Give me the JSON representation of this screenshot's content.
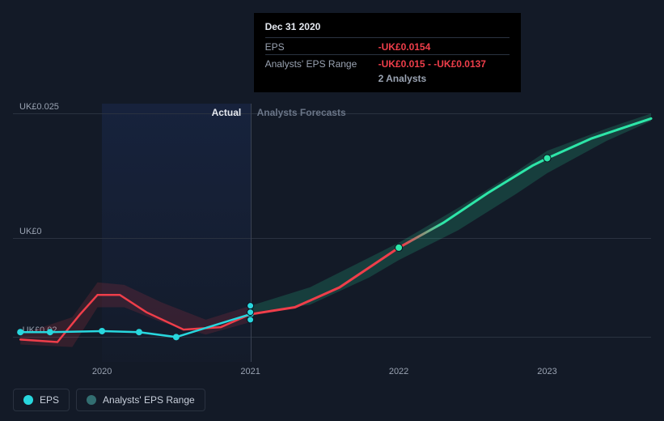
{
  "chart": {
    "type": "line",
    "background_color": "#131a27",
    "grid_color": "#2a3240",
    "text_color": "#9aa3b2",
    "region_actual_label": "Actual",
    "region_forecast_label": "Analysts Forecasts",
    "x": {
      "min": 2019.4,
      "max": 2023.7,
      "ticks": [
        2020,
        2021,
        2022,
        2023
      ],
      "labels": [
        "2020",
        "2021",
        "2022",
        "2023"
      ],
      "forecast_start": 2020.0,
      "actual_end": 2021.0
    },
    "y": {
      "min": -0.025,
      "max": 0.027,
      "ticks": [
        -0.02,
        0,
        0.025
      ],
      "labels": [
        "-UK£0.02",
        "UK£0",
        "UK£0.025"
      ]
    },
    "series": {
      "eps_actual": {
        "color": "#28d7de",
        "line_width": 2.5,
        "marker_radius": 4,
        "points": [
          [
            2019.45,
            -0.019
          ],
          [
            2019.65,
            -0.019
          ],
          [
            2020.0,
            -0.0188
          ],
          [
            2020.25,
            -0.019
          ],
          [
            2020.5,
            -0.02
          ],
          [
            2021.0,
            -0.0154
          ]
        ]
      },
      "eps_actual_smooth": {
        "color": "#ef3e4a",
        "line_width": 2.5,
        "points": [
          [
            2019.45,
            -0.0205
          ],
          [
            2019.7,
            -0.021
          ],
          [
            2019.85,
            -0.0155
          ],
          [
            2019.97,
            -0.0115
          ],
          [
            2020.12,
            -0.0115
          ],
          [
            2020.3,
            -0.015
          ],
          [
            2020.55,
            -0.0185
          ],
          [
            2020.8,
            -0.018
          ],
          [
            2021.0,
            -0.0154
          ]
        ]
      },
      "forecast_mid": {
        "color_start": "#ef3e4a",
        "color_end": "#2de6a8",
        "line_width": 3,
        "points": [
          [
            2021.0,
            -0.0154
          ],
          [
            2021.3,
            -0.014
          ],
          [
            2021.6,
            -0.01
          ],
          [
            2021.9,
            -0.004
          ],
          [
            2022.0,
            -0.002
          ],
          [
            2022.3,
            0.003
          ],
          [
            2022.6,
            0.009
          ],
          [
            2022.9,
            0.0145
          ],
          [
            2023.0,
            0.016
          ],
          [
            2023.3,
            0.02
          ],
          [
            2023.55,
            0.0225
          ],
          [
            2023.7,
            0.024
          ]
        ]
      },
      "forecast_band": {
        "fill": "rgba(45,230,168,0.18)",
        "fill_red": "rgba(239,62,74,0.18)",
        "upper": [
          [
            2021.0,
            -0.0137
          ],
          [
            2021.4,
            -0.01
          ],
          [
            2021.8,
            -0.004
          ],
          [
            2022.0,
            -0.001
          ],
          [
            2022.4,
            0.006
          ],
          [
            2022.8,
            0.0135
          ],
          [
            2023.0,
            0.0175
          ],
          [
            2023.4,
            0.022
          ],
          [
            2023.7,
            0.025
          ]
        ],
        "lower": [
          [
            2021.0,
            -0.015
          ],
          [
            2021.4,
            -0.0135
          ],
          [
            2021.8,
            -0.008
          ],
          [
            2022.0,
            -0.0045
          ],
          [
            2022.4,
            0.0015
          ],
          [
            2022.8,
            0.009
          ],
          [
            2023.0,
            0.013
          ],
          [
            2023.4,
            0.0195
          ],
          [
            2023.7,
            0.0235
          ]
        ]
      },
      "actual_band": {
        "fill": "rgba(239,62,74,0.15)",
        "upper": [
          [
            2019.45,
            -0.0195
          ],
          [
            2019.8,
            -0.016
          ],
          [
            2019.97,
            -0.009
          ],
          [
            2020.15,
            -0.0095
          ],
          [
            2020.4,
            -0.013
          ],
          [
            2020.7,
            -0.0165
          ],
          [
            2021.0,
            -0.0137
          ]
        ],
        "lower": [
          [
            2019.45,
            -0.0215
          ],
          [
            2019.8,
            -0.022
          ],
          [
            2019.97,
            -0.014
          ],
          [
            2020.15,
            -0.014
          ],
          [
            2020.4,
            -0.017
          ],
          [
            2020.7,
            -0.0195
          ],
          [
            2021.0,
            -0.017
          ]
        ]
      },
      "forecast_markers": {
        "color": "#2de6a8",
        "radius": 4.5,
        "points": [
          [
            2022.0,
            -0.002
          ],
          [
            2023.0,
            0.016
          ]
        ]
      },
      "stack_markers": {
        "color": "#28d7de",
        "radius": 4,
        "points": [
          [
            2021.0,
            -0.0137
          ],
          [
            2021.0,
            -0.015
          ],
          [
            2021.0,
            -0.0165
          ]
        ]
      }
    },
    "tooltip": {
      "x": 2021.0,
      "date": "Dec 31 2020",
      "rows": [
        {
          "key": "EPS",
          "val": "-UK£0.0154"
        },
        {
          "key": "Analysts' EPS Range",
          "val": "-UK£0.015 - -UK£0.0137"
        }
      ],
      "sub": "2 Analysts"
    }
  },
  "legend": {
    "items": [
      {
        "label": "EPS",
        "color": "#28d7de"
      },
      {
        "label": "Analysts' EPS Range",
        "color": "#326e71"
      }
    ]
  }
}
